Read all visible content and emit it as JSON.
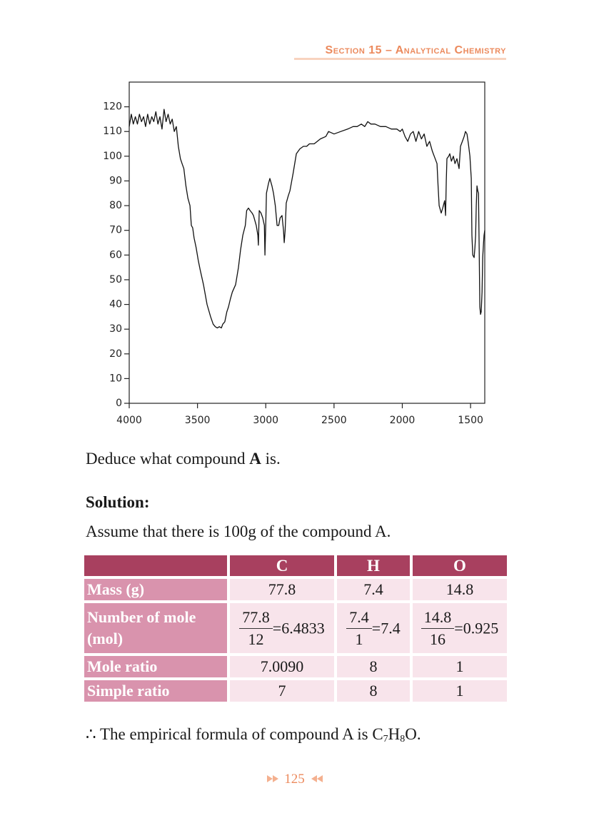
{
  "header": {
    "section": "Section 15 – Analytical Chemistry"
  },
  "chart_data": {
    "type": "line",
    "color": "#111111",
    "xlim": [
      4000,
      1396
    ],
    "ylim": [
      0,
      130
    ],
    "xticks": [
      4000,
      3500,
      3000,
      2500,
      2000,
      1500
    ],
    "yticks": [
      0,
      10,
      20,
      30,
      40,
      50,
      60,
      70,
      80,
      90,
      100,
      110,
      120
    ],
    "x": [
      4000,
      3985,
      3970,
      3955,
      3940,
      3925,
      3910,
      3895,
      3880,
      3865,
      3850,
      3835,
      3820,
      3805,
      3790,
      3775,
      3760,
      3745,
      3730,
      3715,
      3700,
      3685,
      3670,
      3655,
      3640,
      3625,
      3613,
      3600,
      3585,
      3570,
      3555,
      3545,
      3535,
      3525,
      3510,
      3495,
      3480,
      3456,
      3430,
      3404,
      3385,
      3370,
      3355,
      3340,
      3325,
      3315,
      3300,
      3285,
      3273,
      3260,
      3245,
      3221,
      3200,
      3185,
      3168,
      3150,
      3140,
      3127,
      3115,
      3100,
      3090,
      3070,
      3058,
      3054,
      3048,
      3035,
      3022,
      3010,
      3006,
      3000,
      2995,
      2980,
      2970,
      2955,
      2943,
      2930,
      2917,
      2905,
      2895,
      2881,
      2870,
      2865,
      2858,
      2850,
      2835,
      2823,
      2800,
      2776,
      2750,
      2724,
      2700,
      2680,
      2645,
      2600,
      2560,
      2540,
      2500,
      2450,
      2400,
      2360,
      2331,
      2300,
      2275,
      2253,
      2230,
      2200,
      2160,
      2120,
      2080,
      2040,
      2015,
      2000,
      1980,
      1960,
      1940,
      1920,
      1900,
      1880,
      1860,
      1840,
      1820,
      1800,
      1780,
      1766,
      1746,
      1738,
      1730,
      1715,
      1704,
      1690,
      1683,
      1678,
      1673,
      1660,
      1652,
      1640,
      1626,
      1614,
      1600,
      1584,
      1574,
      1560,
      1547,
      1537,
      1526,
      1516,
      1505,
      1495,
      1490,
      1484,
      1474,
      1468,
      1463,
      1458,
      1453,
      1447,
      1442,
      1437,
      1432,
      1427,
      1422,
      1416,
      1411,
      1405,
      1401,
      1396
    ],
    "values": [
      112,
      117,
      113,
      116,
      113,
      117,
      114,
      116,
      112,
      117,
      113,
      116,
      114,
      118,
      113,
      116,
      111,
      119,
      114,
      117,
      113,
      115,
      110,
      112,
      104,
      99,
      97,
      95,
      88,
      83,
      80,
      72,
      71,
      67,
      63,
      58,
      54,
      48,
      40,
      35,
      32,
      31,
      30.5,
      31,
      30.5,
      32,
      33,
      37,
      39,
      42,
      45,
      48,
      55,
      62,
      68,
      72,
      78,
      79,
      78,
      77,
      76,
      72,
      68,
      64,
      78,
      77,
      75,
      72,
      60,
      72,
      85,
      89,
      91,
      88,
      85,
      80,
      72,
      72,
      75,
      76,
      70,
      65,
      70,
      81,
      84,
      86,
      93,
      101,
      103,
      104,
      104,
      105,
      105,
      107,
      108,
      110,
      109,
      110,
      111,
      112,
      112,
      113,
      112,
      114,
      113,
      113,
      112,
      112,
      111,
      111,
      110,
      111,
      108,
      106,
      109,
      110,
      106,
      110,
      107,
      109,
      104,
      106,
      102,
      100,
      97,
      88,
      80,
      77,
      79,
      82,
      76,
      90,
      99,
      100,
      101,
      98,
      100,
      97,
      99,
      95,
      104,
      106,
      108,
      110,
      109,
      105,
      100,
      91,
      68,
      60,
      59,
      63,
      68,
      80,
      88,
      86,
      85,
      62,
      39,
      36,
      37,
      45,
      59,
      65,
      68,
      70
    ]
  },
  "question": {
    "text": "Deduce what compound ",
    "bold": "A",
    "end": " is."
  },
  "solution": {
    "heading": "Solution:",
    "assumption": "Assume that there is 100g of the compound A."
  },
  "table": {
    "columns": [
      "C",
      "H",
      "O"
    ],
    "rows": [
      {
        "label": "Mass (g)",
        "cells": [
          "77.8",
          "7.4",
          "14.8"
        ]
      },
      {
        "label": "Number of mole (mol)",
        "cells": [
          {
            "numerator": "77.8",
            "denominator": "12",
            "result": "=6.4833"
          },
          {
            "numerator": "7.4",
            "denominator": "1",
            "result": "=7.4"
          },
          {
            "numerator": "14.8",
            "denominator": "16",
            "result": "=0.925"
          }
        ]
      },
      {
        "label": "Mole ratio",
        "cells": [
          "7.0090",
          "8",
          "1"
        ]
      },
      {
        "label": "Simple ratio",
        "cells": [
          "7",
          "8",
          "1"
        ]
      }
    ]
  },
  "conclusion": {
    "therefore": "∴",
    "text": " The empirical formula of compound A is ",
    "formula": [
      "C",
      "7",
      "H",
      "8",
      "O"
    ],
    "end": "."
  },
  "footer": {
    "page": "125"
  }
}
